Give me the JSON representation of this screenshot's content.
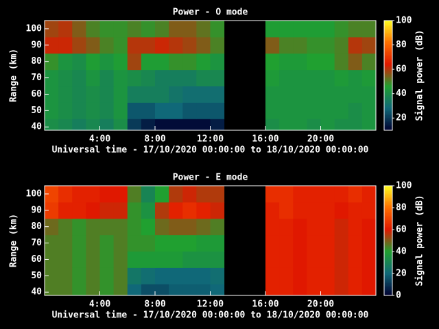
{
  "chart_data": [
    {
      "type": "heatmap",
      "title": "Power - O mode",
      "xlabel": "Universal time - 17/10/2020 00:00:00 to 18/10/2020 00:00:00",
      "ylabel": "Range (km)",
      "colorbar_label": "Signal power (dB)",
      "xbins": [
        0,
        1,
        2,
        3,
        4,
        5,
        6,
        7,
        8,
        9,
        10,
        11,
        12,
        13,
        14,
        15,
        16,
        17,
        18,
        19,
        20,
        21,
        22,
        23,
        24
      ],
      "ybins": [
        38,
        45,
        55,
        65,
        75,
        85,
        95,
        105
      ],
      "values": [
        [
          40,
          38,
          35,
          38,
          35,
          40,
          20,
          15,
          12,
          12,
          12,
          12,
          15,
          null,
          null,
          null,
          40,
          42,
          42,
          40,
          42,
          40,
          40,
          42
        ],
        [
          42,
          40,
          38,
          40,
          38,
          42,
          25,
          25,
          28,
          28,
          25,
          25,
          25,
          null,
          null,
          null,
          42,
          42,
          42,
          42,
          42,
          42,
          40,
          42
        ],
        [
          42,
          40,
          38,
          40,
          38,
          42,
          35,
          35,
          35,
          32,
          30,
          30,
          30,
          null,
          null,
          null,
          42,
          42,
          42,
          42,
          42,
          42,
          42,
          42
        ],
        [
          42,
          40,
          38,
          42,
          38,
          42,
          40,
          38,
          35,
          35,
          35,
          38,
          38,
          null,
          null,
          null,
          44,
          42,
          42,
          42,
          42,
          44,
          42,
          44
        ],
        [
          48,
          42,
          40,
          45,
          42,
          45,
          58,
          45,
          45,
          48,
          48,
          45,
          42,
          null,
          null,
          null,
          46,
          44,
          44,
          46,
          46,
          50,
          55,
          50
        ],
        [
          62,
          62,
          58,
          55,
          50,
          48,
          60,
          60,
          62,
          60,
          58,
          55,
          50,
          null,
          null,
          null,
          55,
          50,
          50,
          48,
          48,
          50,
          60,
          58
        ],
        [
          58,
          60,
          55,
          50,
          48,
          48,
          50,
          48,
          50,
          55,
          55,
          52,
          48,
          null,
          null,
          null,
          45,
          45,
          45,
          45,
          45,
          48,
          50,
          50
        ]
      ],
      "xlim": [
        0,
        24
      ],
      "xticks": [
        {
          "value": 4,
          "label": "4:00"
        },
        {
          "value": 8,
          "label": "8:00"
        },
        {
          "value": 12,
          "label": "12:00"
        },
        {
          "value": 16,
          "label": "16:00"
        },
        {
          "value": 20,
          "label": "20:00"
        }
      ],
      "ylim": [
        38,
        105
      ],
      "yticks": [
        40,
        50,
        60,
        70,
        80,
        90,
        100
      ],
      "clim": [
        10,
        100
      ],
      "cticks": [
        20,
        40,
        60,
        80,
        100
      ],
      "colormap": [
        "#000030",
        "#106878",
        "#20a030",
        "#e01800",
        "#ff7000",
        "#ffff20"
      ]
    },
    {
      "type": "heatmap",
      "title": "Power - E mode",
      "xlabel": "Universal time - 17/10/2020 00:00:00 to 18/10/2020 00:00:00",
      "ylabel": "Range (km)",
      "colorbar_label": "Signal power (dB)",
      "xbins": [
        0,
        1,
        2,
        3,
        4,
        5,
        6,
        7,
        8,
        9,
        10,
        11,
        12,
        13,
        14,
        15,
        16,
        17,
        18,
        19,
        20,
        21,
        22,
        23,
        24
      ],
      "ybins": [
        38,
        45,
        55,
        65,
        75,
        85,
        95,
        105
      ],
      "values": [
        [
          45,
          45,
          42,
          45,
          42,
          45,
          20,
          15,
          15,
          18,
          18,
          18,
          20,
          null,
          null,
          null,
          62,
          62,
          60,
          62,
          62,
          58,
          62,
          60
        ],
        [
          45,
          45,
          42,
          45,
          42,
          45,
          25,
          22,
          20,
          20,
          20,
          20,
          22,
          null,
          null,
          null,
          62,
          62,
          60,
          62,
          62,
          58,
          62,
          60
        ],
        [
          45,
          45,
          42,
          45,
          42,
          45,
          38,
          38,
          38,
          38,
          35,
          35,
          35,
          null,
          null,
          null,
          62,
          62,
          60,
          62,
          62,
          58,
          62,
          60
        ],
        [
          45,
          45,
          42,
          45,
          42,
          45,
          42,
          42,
          40,
          40,
          40,
          38,
          38,
          null,
          null,
          null,
          62,
          62,
          60,
          62,
          62,
          58,
          62,
          60
        ],
        [
          48,
          45,
          42,
          45,
          45,
          45,
          42,
          40,
          48,
          50,
          50,
          48,
          45,
          null,
          null,
          null,
          62,
          62,
          60,
          62,
          62,
          58,
          62,
          60
        ],
        [
          68,
          62,
          62,
          60,
          58,
          58,
          42,
          35,
          55,
          62,
          65,
          62,
          58,
          null,
          null,
          null,
          62,
          65,
          62,
          62,
          62,
          60,
          62,
          62
        ],
        [
          70,
          65,
          62,
          62,
          60,
          60,
          45,
          30,
          40,
          55,
          58,
          55,
          55,
          null,
          null,
          null,
          65,
          65,
          62,
          62,
          62,
          62,
          65,
          62
        ]
      ],
      "xlim": [
        0,
        24
      ],
      "xticks": [
        {
          "value": 4,
          "label": "4:00"
        },
        {
          "value": 8,
          "label": "8:00"
        },
        {
          "value": 12,
          "label": "12:00"
        },
        {
          "value": 16,
          "label": "16:00"
        },
        {
          "value": 20,
          "label": "20:00"
        }
      ],
      "ylim": [
        38,
        105
      ],
      "yticks": [
        40,
        50,
        60,
        70,
        80,
        90,
        100
      ],
      "clim": [
        0,
        100
      ],
      "cticks": [
        0,
        20,
        40,
        60,
        80,
        100
      ],
      "colormap": [
        "#000030",
        "#106878",
        "#20a030",
        "#e01800",
        "#ff7000",
        "#ffff20"
      ]
    }
  ]
}
